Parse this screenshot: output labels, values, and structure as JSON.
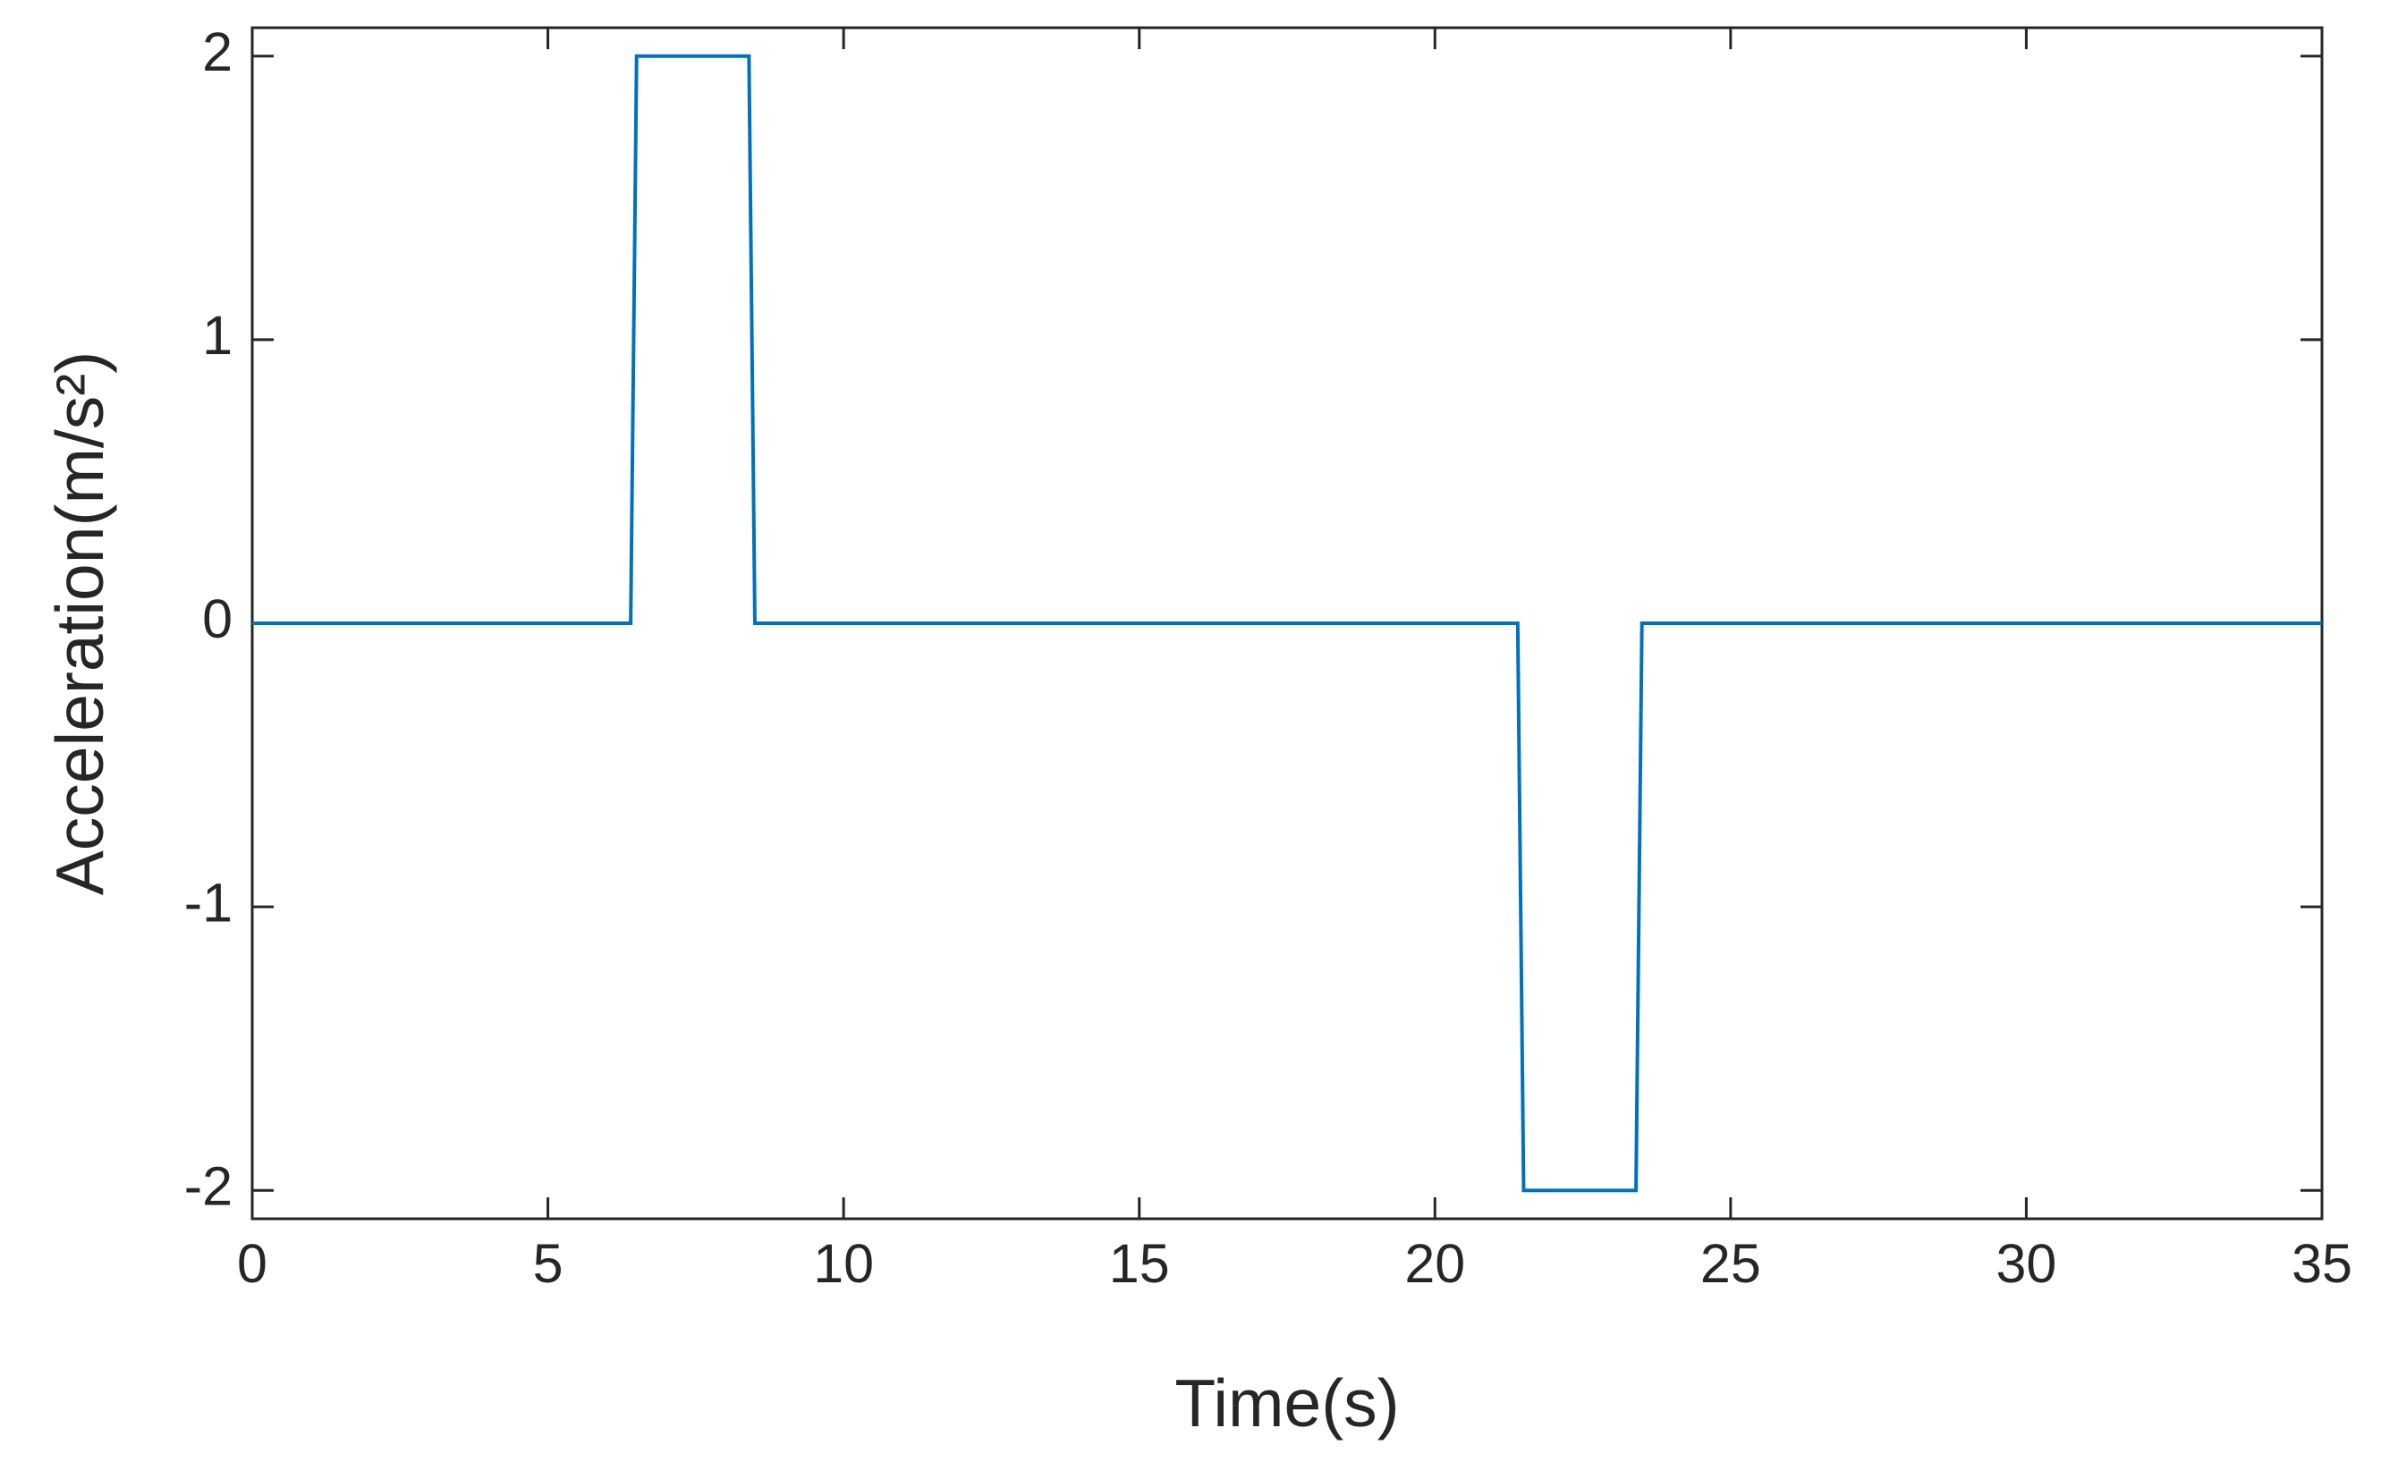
{
  "chart_data": {
    "type": "line",
    "xlabel": "Time(s)",
    "ylabel": "Acceleration(m/s²)",
    "x": [
      0,
      6.4,
      6.5,
      8.4,
      8.5,
      21.4,
      21.5,
      23.4,
      23.5,
      35
    ],
    "values": [
      0,
      0,
      2,
      2,
      0,
      0,
      -2,
      -2,
      0,
      0
    ],
    "color": "#0072bd",
    "xlim": [
      0,
      35
    ],
    "xticks": [
      0,
      5,
      10,
      15,
      20,
      25,
      30,
      35
    ],
    "ylim": [
      -2.1,
      2.1
    ],
    "yticks": [
      -2,
      -1,
      0,
      1,
      2
    ],
    "grid": false
  }
}
